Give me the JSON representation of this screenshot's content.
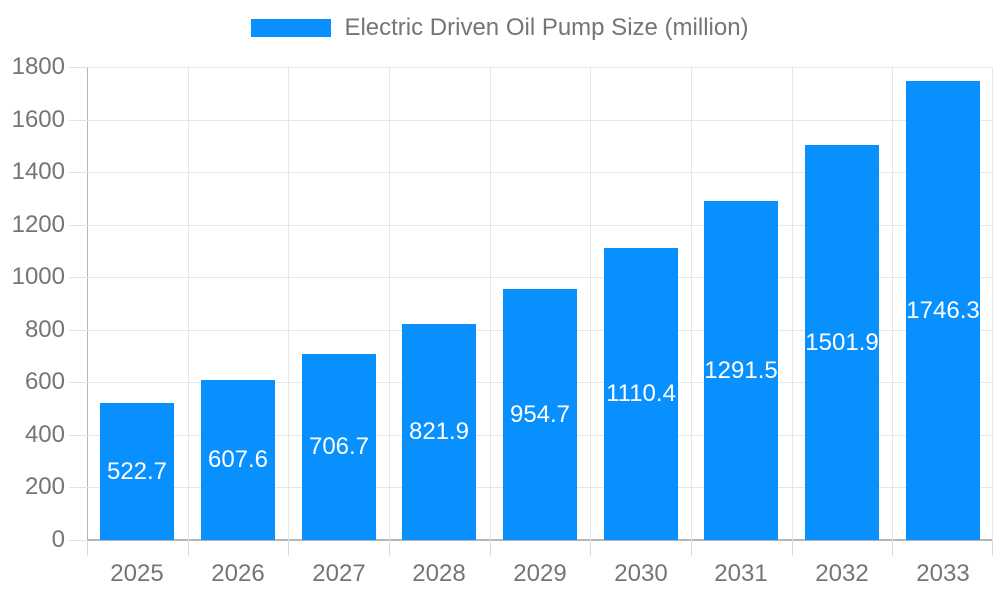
{
  "legend": {
    "label": "Electric Driven Oil Pump Size (million)"
  },
  "chart_data": {
    "type": "bar",
    "title": "Electric Driven Oil Pump Size (million)",
    "series_name": "Electric Driven Oil Pump Size (million)",
    "categories": [
      "2025",
      "2026",
      "2027",
      "2028",
      "2029",
      "2030",
      "2031",
      "2032",
      "2033"
    ],
    "values": [
      522.7,
      607.6,
      706.7,
      821.9,
      954.7,
      1110.4,
      1291.5,
      1501.9,
      1746.3
    ],
    "value_labels": [
      "522.7",
      "607.6",
      "706.7",
      "821.9",
      "954.7",
      "1110.4",
      "1291.5",
      "1501.9",
      "1746.3"
    ],
    "xlabel": "",
    "ylabel": "",
    "ylim": [
      0,
      1800
    ],
    "yticks": [
      0,
      200,
      400,
      600,
      800,
      1000,
      1200,
      1400,
      1600,
      1800
    ],
    "grid": true,
    "legend_position": "top",
    "colors": {
      "bar": "#0990ff",
      "bar_label_text": "#ffffff",
      "axis_text": "#757575",
      "gridline": "#e6e6e6",
      "axis_line": "#b6b6b6",
      "background": "#ffffff"
    }
  }
}
